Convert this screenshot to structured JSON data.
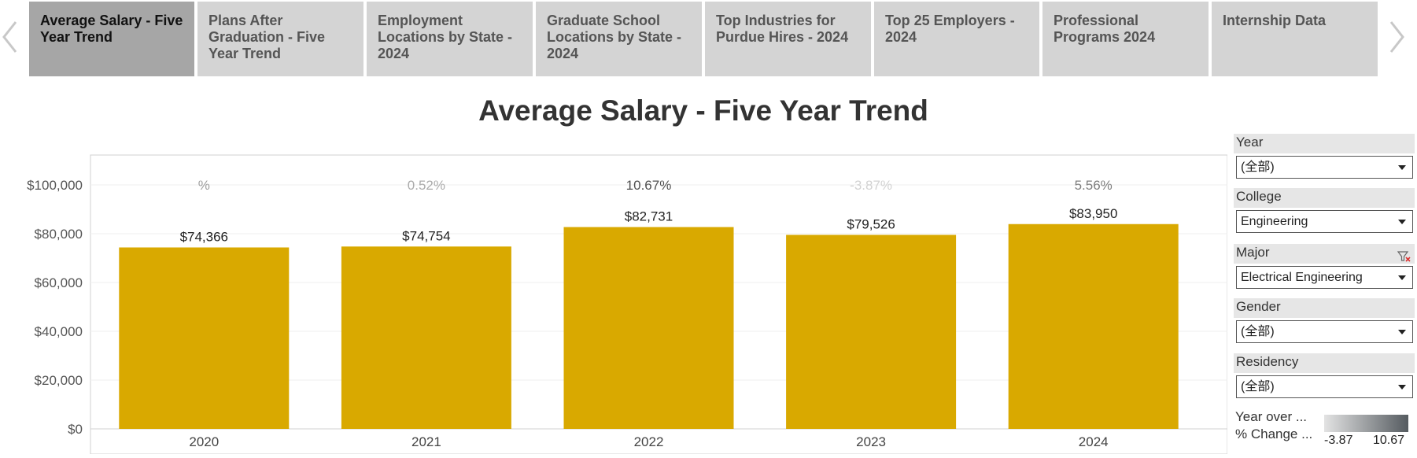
{
  "tabs": [
    {
      "label": "Average Salary - Five Year Trend",
      "active": true
    },
    {
      "label": "Plans After Graduation - Five Year  Trend",
      "active": false
    },
    {
      "label": "Employment Locations by State - 2024",
      "active": false
    },
    {
      "label": "Graduate School Locations by State - 2024",
      "active": false
    },
    {
      "label": "Top Industries for Purdue Hires - 2024",
      "active": false
    },
    {
      "label": "Top 25 Employers - 2024",
      "active": false
    },
    {
      "label": "Professional Programs 2024",
      "active": false
    },
    {
      "label": "Internship Data",
      "active": false
    }
  ],
  "title": "Average Salary - Five Year Trend",
  "filters": {
    "year": {
      "label": "Year",
      "value": "(全部)"
    },
    "college": {
      "label": "College",
      "value": "Engineering"
    },
    "major": {
      "label": "Major",
      "value": "Electrical Engineering"
    },
    "gender": {
      "label": "Gender",
      "value": "(全部)"
    },
    "residency": {
      "label": "Residency",
      "value": "(全部)"
    }
  },
  "legend": {
    "title_line1": "Year over ...",
    "title_line2": "% Change ...",
    "min_label": "-3.87",
    "max_label": "10.67",
    "color_low": "#e3e3e3",
    "color_high": "#555b60"
  },
  "colors": {
    "bar": "#d9a900"
  },
  "chart_data": {
    "type": "bar",
    "categories": [
      "2020",
      "2021",
      "2022",
      "2023",
      "2024"
    ],
    "values": [
      74366,
      74754,
      82731,
      79526,
      83950
    ],
    "value_labels": [
      "$74,366",
      "$74,754",
      "$82,731",
      "$79,526",
      "$83,950"
    ],
    "pct_change": [
      null,
      0.52,
      10.67,
      -3.87,
      5.56
    ],
    "pct_labels": [
      "%",
      "0.52%",
      "10.67%",
      "-3.87%",
      "5.56%"
    ],
    "ylim": [
      0,
      100000
    ],
    "yticks": [
      0,
      20000,
      40000,
      60000,
      80000,
      100000
    ],
    "ytick_labels": [
      "$0",
      "$20,000",
      "$40,000",
      "$60,000",
      "$80,000",
      "$100,000"
    ],
    "grid": true
  }
}
